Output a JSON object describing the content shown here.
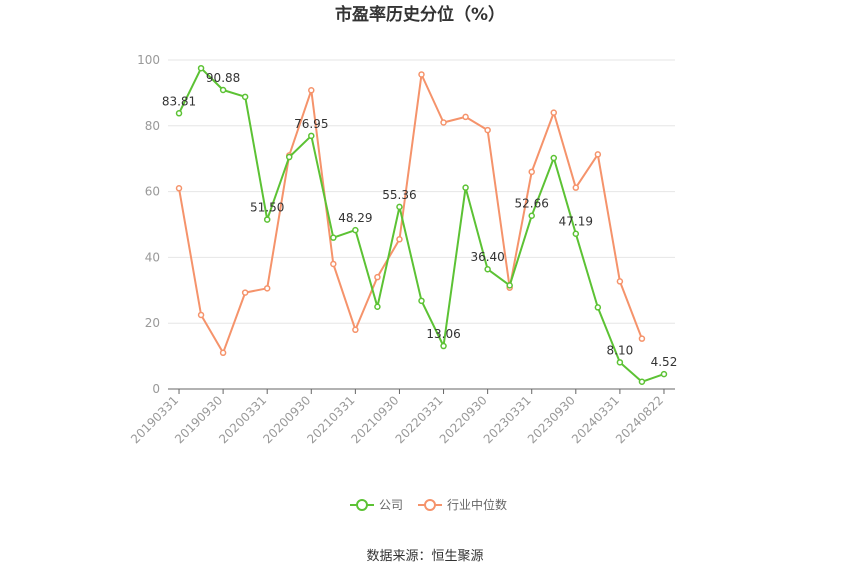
{
  "chart_data": {
    "type": "line",
    "title": "市盈率历史分位（%）",
    "ylim": [
      0,
      100
    ],
    "y_ticks": [
      0,
      20,
      40,
      60,
      80,
      100
    ],
    "grid": true,
    "legend_position": "bottom",
    "x_tick_labels": [
      "20190331",
      "20190930",
      "20200331",
      "20200930",
      "20210331",
      "20210930",
      "20220331",
      "20220930",
      "20230331",
      "20230930",
      "20240331",
      "20240822"
    ],
    "point_count": 23,
    "series": [
      {
        "name": "公司",
        "color": "#5cc234",
        "values": [
          83.81,
          97.5,
          90.88,
          88.8,
          51.5,
          70.5,
          76.95,
          46.0,
          48.29,
          25.0,
          55.36,
          26.8,
          13.06,
          61.2,
          36.4,
          31.5,
          52.66,
          70.2,
          47.19,
          24.8,
          8.1,
          2.2,
          4.52
        ],
        "labels": [
          "83.81",
          "",
          "90.88",
          "",
          "51.50",
          "",
          "76.95",
          "",
          "48.29",
          "",
          "55.36",
          "",
          "13.06",
          "",
          "36.40",
          "",
          "52.66",
          "",
          "47.19",
          "",
          "8.10",
          "",
          "4.52"
        ]
      },
      {
        "name": "行业中位数",
        "color": "#f5936b",
        "values": [
          61.0,
          22.5,
          11.0,
          29.3,
          30.6,
          71.0,
          90.8,
          38.0,
          18.0,
          34.0,
          45.5,
          95.6,
          81.0,
          82.7,
          78.7,
          30.8,
          66.0,
          84.0,
          61.2,
          71.3,
          32.7,
          15.3,
          null
        ]
      }
    ]
  },
  "source_text": "数据来源：恒生聚源"
}
